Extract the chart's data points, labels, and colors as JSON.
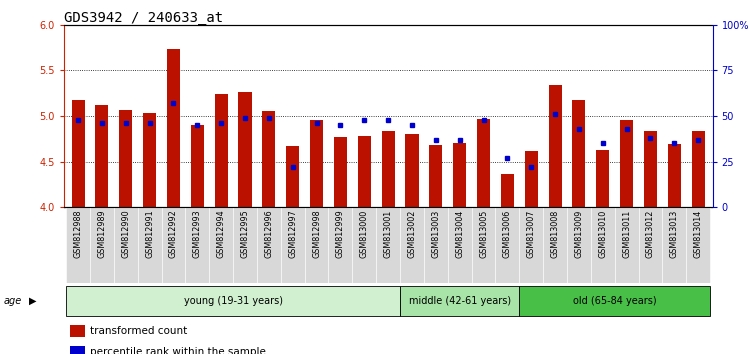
{
  "title": "GDS3942 / 240633_at",
  "samples": [
    "GSM812988",
    "GSM812989",
    "GSM812990",
    "GSM812991",
    "GSM812992",
    "GSM812993",
    "GSM812994",
    "GSM812995",
    "GSM812996",
    "GSM812997",
    "GSM812998",
    "GSM812999",
    "GSM813000",
    "GSM813001",
    "GSM813002",
    "GSM813003",
    "GSM813004",
    "GSM813005",
    "GSM813006",
    "GSM813007",
    "GSM813008",
    "GSM813009",
    "GSM813010",
    "GSM813011",
    "GSM813012",
    "GSM813013",
    "GSM813014"
  ],
  "red_values": [
    5.18,
    5.12,
    5.07,
    5.03,
    5.73,
    4.9,
    5.24,
    5.26,
    5.05,
    4.67,
    4.95,
    4.77,
    4.78,
    4.83,
    4.8,
    4.68,
    4.7,
    4.97,
    4.36,
    4.62,
    5.34,
    5.18,
    4.63,
    4.95,
    4.83,
    4.69,
    4.83
  ],
  "blue_values": [
    48,
    46,
    46,
    46,
    57,
    45,
    46,
    49,
    49,
    22,
    46,
    45,
    48,
    48,
    45,
    37,
    37,
    48,
    27,
    22,
    51,
    43,
    35,
    43,
    38,
    35,
    37
  ],
  "groups": [
    {
      "label": "young (19-31 years)",
      "start": 0,
      "end": 14,
      "color": "#d0f0d0"
    },
    {
      "label": "middle (42-61 years)",
      "start": 14,
      "end": 19,
      "color": "#a8e4a8"
    },
    {
      "label": "old (65-84 years)",
      "start": 19,
      "end": 27,
      "color": "#48c048"
    }
  ],
  "ylim_left": [
    4.0,
    6.0
  ],
  "ylim_right": [
    0,
    100
  ],
  "yticks_left": [
    4.0,
    4.5,
    5.0,
    5.5,
    6.0
  ],
  "yticks_right": [
    0,
    25,
    50,
    75,
    100
  ],
  "ytick_labels_right": [
    "0",
    "25",
    "50",
    "75",
    "100%"
  ],
  "bar_color": "#bb1100",
  "dot_color": "#0000cc",
  "base_value": 4.0,
  "background_color": "#ffffff",
  "title_fontsize": 10,
  "tick_fontsize": 7,
  "label_fontsize": 5.8,
  "group_fontsize": 7,
  "legend_fontsize": 7.5,
  "axis_color_left": "#cc2200",
  "axis_color_right": "#0000cc",
  "grid_color": "#000000",
  "xtick_bg": "#d8d8d8"
}
